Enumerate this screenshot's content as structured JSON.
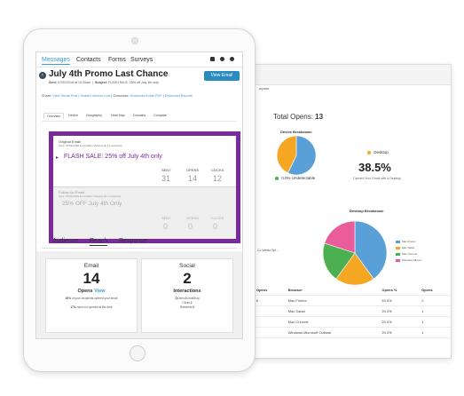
{
  "back_window": {
    "crumb": "mpare",
    "total_opens_label": "Total Opens:",
    "total_opens_value": "13",
    "device_breakdown_title": "Device Breakdown",
    "desktop_label": "Desktop",
    "desktop_percent": "38.5%",
    "desktop_sub": "Opened Your Email with a Desktop",
    "undetectable_label": "0.0% Undetectable",
    "desktop_breakdown_title": "Desktop Breakdown",
    "cut_label": "Co Wesla Spl...",
    "legend": [
      {
        "label": "Mac Firefox",
        "color": "#5aa0d8"
      },
      {
        "label": "Mac Safari",
        "color": "#f5a623"
      },
      {
        "label": "Mac Chrome",
        "color": "#4caf50"
      },
      {
        "label": "Windows Micros...",
        "color": "#e85d9a"
      }
    ],
    "table": {
      "headers": [
        "Opens",
        "Browser",
        "Opens %",
        "Opens"
      ],
      "rows": [
        [
          "6",
          "Mac Firefox",
          "40.0%",
          "2"
        ],
        [
          "",
          "Mac Safari",
          "20.0%",
          "1"
        ],
        [
          "",
          "Mac Chrome",
          "20.0%",
          "1"
        ],
        [
          "",
          "Windows Microsoft Outlook",
          "20.0%",
          "1"
        ]
      ]
    }
  },
  "nav": {
    "tabs": [
      "Messages",
      "Contacts",
      "Forms",
      "Surveys"
    ]
  },
  "campaign": {
    "title": "July 4th Promo Last Chance",
    "sent_label": "Sent:",
    "sent_value": "07/02/2018 at 10:20am",
    "subject_label": "Subject:",
    "subject_value": "FLASH SALE: 25% off July 4th only",
    "view_email": "View Email"
  },
  "share": {
    "share_label": "Share:",
    "view_social_post": "View Social Post",
    "hosted_version_link": "Hosted Version Link",
    "download_label": "Download:",
    "download_email_pdf": "Download Email PDF",
    "download_reports": "Download Reports"
  },
  "subtabs": [
    "Overview",
    "Device",
    "Geography",
    "Heat Map",
    "Domains",
    "Compare"
  ],
  "original_email": {
    "label": "Original Email",
    "sent_line": "Sent: 07/02/2018 at 10:20am Viewing all 14 recipients",
    "subject": "FLASH SALE: 25% off July 4th only",
    "stats": [
      {
        "label": "SENT",
        "value": "31"
      },
      {
        "label": "OPENS",
        "value": "14"
      },
      {
        "label": "CLICKS",
        "value": "12"
      }
    ]
  },
  "followup_email": {
    "label": "Follow Up Email",
    "sent_line": "Sent: 07/04/2018 at 10:20am Viewing all 0 recipients",
    "subject": "25% OFF July 4th Only",
    "stats": [
      {
        "label": "SENT",
        "value": "0"
      },
      {
        "label": "OPENS",
        "value": "0"
      },
      {
        "label": "CLICKS",
        "value": "0"
      }
    ]
  },
  "audience_tabs": [
    "Audience",
    "Reach",
    "Response"
  ],
  "email_card": {
    "title": "Email",
    "number": "14",
    "opens_label": "Opens",
    "view_link": "View",
    "line1_pct": "45%",
    "line1": "of your recipients opened your email",
    "line2_pct": "17%",
    "line2": "have not opened at this time"
  },
  "social_card": {
    "title": "Social",
    "number": "2",
    "interactions_label": "Interactions",
    "handle": "@DemoDonutShop",
    "clicks_label": "Clicks",
    "clicks_value": "2",
    "retweets_label": "Retweets",
    "retweets_value": "0"
  },
  "colors": {
    "accent_blue": "#3a9bd8",
    "button_blue": "#2a8bbf",
    "purple": "#7b2a9e"
  }
}
